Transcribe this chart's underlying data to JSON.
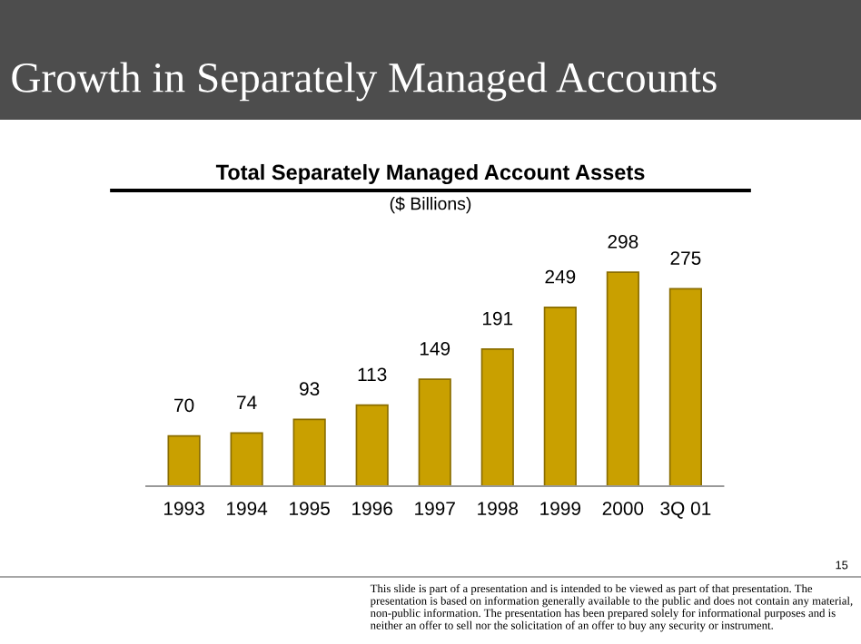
{
  "chart_data": {
    "type": "bar",
    "title": "Growth in Separately Managed Accounts",
    "subtitle": "Total Separately Managed Account Assets\n($ Billions)",
    "categories": [
      "1993",
      "1994",
      "1995",
      "1996",
      "1997",
      "1998",
      "1999",
      "2000",
      "3Q 01"
    ],
    "values": [
      70,
      74,
      93,
      113,
      149,
      191,
      249,
      298,
      275
    ],
    "color": "#c9a000",
    "data_labels": true,
    "grid": false,
    "legend": false,
    "annotations": [
      "This slide is part of a presentation and is intended to be viewed as part of that presentation. The presentation is based on information generally available to the public and does not contain any material, non-public information. The presentation has been prepared solely for informational purposes and is neither an offer to sell nor the solicitation of an offer to buy any security or instrument.",
      "15"
    ]
  }
}
